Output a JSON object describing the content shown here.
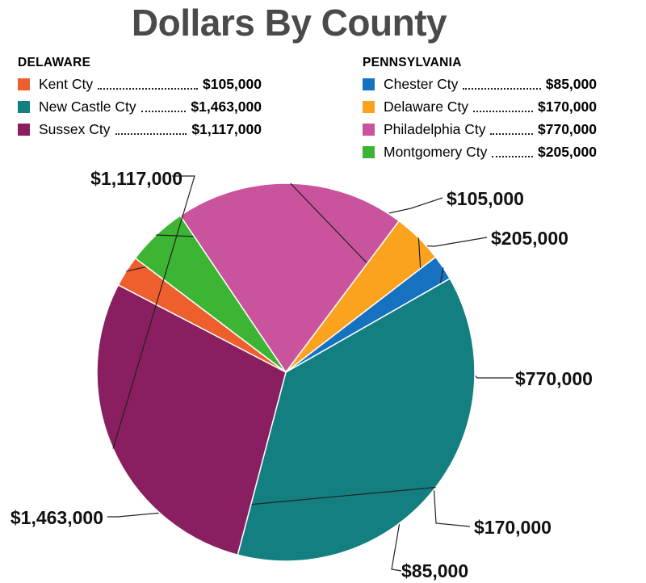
{
  "title": "Dollars By County",
  "legend": {
    "delaware": {
      "heading": "DELAWARE",
      "items": [
        {
          "name": "Kent Cty",
          "value": "$105,000",
          "color": "#ee5f2e"
        },
        {
          "name": "New Castle Cty",
          "value": "$1,463,000",
          "color": "#137f80"
        },
        {
          "name": "Sussex Cty",
          "value": "$1,117,000",
          "color": "#891e60"
        }
      ]
    },
    "pennsylvania": {
      "heading": "PENNSYLVANIA",
      "items": [
        {
          "name": "Chester Cty",
          "value": "$85,000",
          "color": "#1671c0"
        },
        {
          "name": "Delaware Cty",
          "value": "$170,000",
          "color": "#fba21e"
        },
        {
          "name": "Philadelphia Cty",
          "value": "$770,000",
          "color": "#c9539c"
        },
        {
          "name": "Montgomery Cty",
          "value": "$205,000",
          "color": "#3db534"
        }
      ]
    }
  },
  "chart_data": {
    "type": "pie",
    "title": "Dollars By County",
    "slices": [
      {
        "name": "Kent Cty",
        "value": 105000,
        "label": "$105,000",
        "color": "#ee5f2e"
      },
      {
        "name": "Montgomery Cty",
        "value": 205000,
        "label": "$205,000",
        "color": "#3db534"
      },
      {
        "name": "Philadelphia Cty",
        "value": 770000,
        "label": "$770,000",
        "color": "#c9539c"
      },
      {
        "name": "Delaware Cty",
        "value": 170000,
        "label": "$170,000",
        "color": "#fba21e"
      },
      {
        "name": "Chester Cty",
        "value": 85000,
        "label": "$85,000",
        "color": "#1671c0"
      },
      {
        "name": "New Castle Cty",
        "value": 1463000,
        "label": "$1,463,000",
        "color": "#137f80"
      },
      {
        "name": "Sussex Cty",
        "value": 1117000,
        "label": "$1,117,000",
        "color": "#891e60"
      }
    ],
    "legend_groups": [
      "DELAWARE",
      "PENNSYLVANIA"
    ],
    "legend_position": "top"
  }
}
